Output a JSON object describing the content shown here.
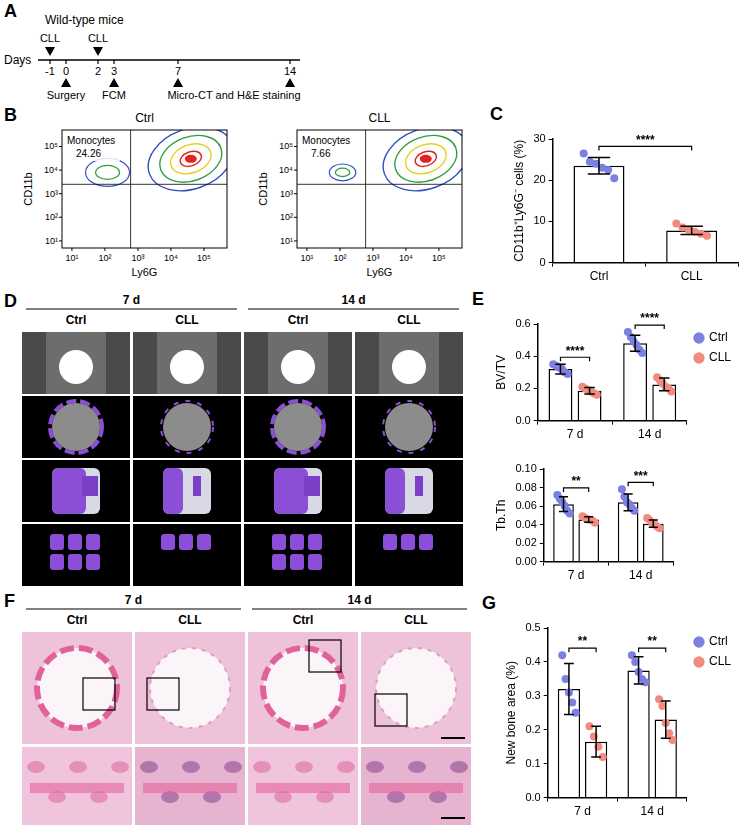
{
  "panels": {
    "A": {
      "letter": "A",
      "title": "Wild-type mice",
      "axis_label": "Days",
      "days": [
        -1,
        0,
        2,
        3,
        7,
        14
      ],
      "events": [
        {
          "days": [
            -1
          ],
          "label": "CLL",
          "side": "above"
        },
        {
          "days": [
            0
          ],
          "label": "Surgery",
          "side": "below"
        },
        {
          "days": [
            2
          ],
          "label": "CLL",
          "side": "above"
        },
        {
          "days": [
            3
          ],
          "label": "FCM",
          "side": "below"
        },
        {
          "days": [
            7,
            14
          ],
          "label": "Micro-CT and H&E staining",
          "side": "below"
        }
      ]
    },
    "B": {
      "letter": "B",
      "x_label": "Ly6G",
      "y_label": "CD11b",
      "xlim": [
        5,
        500000
      ],
      "ylim": [
        5,
        500000
      ],
      "xticks": [
        {
          "value": 10,
          "label": "10¹"
        },
        {
          "value": 100,
          "label": "10²"
        },
        {
          "value": 1000,
          "label": "10³"
        },
        {
          "value": 10000,
          "label": "10⁴"
        },
        {
          "value": 100000,
          "label": "10⁵"
        }
      ],
      "yticks": [
        {
          "value": 10,
          "label": "10¹"
        },
        {
          "value": 100,
          "label": "10²"
        },
        {
          "value": 1000,
          "label": "10³"
        },
        {
          "value": 10000,
          "label": "10⁴"
        },
        {
          "value": 100000,
          "label": "10⁵"
        }
      ],
      "plots": [
        {
          "title": "Ctrl",
          "gate": "Monocytes",
          "value": 24.26
        },
        {
          "title": "CLL",
          "gate": "Monocytes",
          "value": 7.66
        }
      ]
    },
    "D": {
      "letter": "D",
      "groups": [
        "7 d",
        "14 d"
      ],
      "columns": [
        "Ctrl",
        "CLL"
      ]
    },
    "F": {
      "letter": "F",
      "groups": [
        "7 d",
        "14 d"
      ],
      "columns": [
        "Ctrl",
        "CLL"
      ]
    }
  },
  "chart_data": [
    {
      "panel": "C",
      "type": "bar",
      "categories": [
        "Ctrl",
        "CLL"
      ],
      "values": [
        23.5,
        7.8
      ],
      "errors": [
        2.0,
        1.0
      ],
      "points": [
        [
          26.5,
          24.5,
          24,
          23,
          22.5,
          20.5
        ],
        [
          9.5,
          8.5,
          8,
          7.5,
          7,
          6.5
        ]
      ],
      "colors": [
        "#7c80e0",
        "#f08b7e"
      ],
      "y_label": "CD11b⁺Ly6G⁻ cells (%)",
      "ylim": [
        0,
        30
      ],
      "yticks": [
        0,
        10,
        20,
        30
      ],
      "grid": false,
      "comparisons": [
        {
          "between": [
            "Ctrl",
            "CLL"
          ],
          "label": "****"
        }
      ]
    },
    {
      "panel": "E",
      "type": "bar",
      "categories": [
        "7 d",
        "14 d"
      ],
      "series": [
        {
          "name": "Ctrl",
          "color": "#7c80e0",
          "values": [
            0.32,
            0.48
          ],
          "errors": [
            0.03,
            0.05
          ],
          "points": [
            [
              0.35,
              0.34,
              0.33,
              0.32,
              0.3,
              0.29
            ],
            [
              0.55,
              0.52,
              0.49,
              0.47,
              0.44,
              0.42
            ]
          ]
        },
        {
          "name": "CLL",
          "color": "#f08b7e",
          "values": [
            0.185,
            0.225
          ],
          "errors": [
            0.02,
            0.04
          ],
          "points": [
            [
              0.21,
              0.2,
              0.19,
              0.18,
              0.17,
              0.16
            ],
            [
              0.27,
              0.25,
              0.23,
              0.21,
              0.2,
              0.18
            ]
          ]
        }
      ],
      "y_label": "BV/TV",
      "ylim": [
        0,
        0.6
      ],
      "yticks": [
        {
          "value": 0,
          "label": "0.0"
        },
        0.2,
        0.4,
        0.6
      ],
      "grid": false,
      "legend": "right",
      "significance": [
        "****",
        "****"
      ]
    },
    {
      "type": "bar",
      "categories": [
        "7 d",
        "14 d"
      ],
      "series": [
        {
          "name": "Ctrl",
          "color": "#7c80e0",
          "values": [
            0.062,
            0.064
          ],
          "errors": [
            0.008,
            0.009
          ],
          "points": [
            [
              0.072,
              0.068,
              0.064,
              0.06,
              0.055,
              0.052
            ],
            [
              0.078,
              0.07,
              0.064,
              0.062,
              0.058,
              0.055
            ]
          ]
        },
        {
          "name": "CLL",
          "color": "#f08b7e",
          "values": [
            0.0455,
            0.041
          ],
          "errors": [
            0.003,
            0.004
          ],
          "points": [
            [
              0.049,
              0.047,
              0.046,
              0.045,
              0.044,
              0.042
            ],
            [
              0.047,
              0.045,
              0.042,
              0.04,
              0.038,
              0.036
            ]
          ]
        }
      ],
      "y_label": "Tb.Th",
      "ylim": [
        0,
        0.1
      ],
      "yticks": [
        {
          "value": 0,
          "label": "0.00"
        },
        {
          "value": 0.02,
          "label": "0.02"
        },
        {
          "value": 0.04,
          "label": "0.04"
        },
        {
          "value": 0.06,
          "label": "0.06"
        },
        {
          "value": 0.08,
          "label": "0.08"
        },
        {
          "value": 0.1,
          "label": "0.10"
        }
      ],
      "grid": false,
      "significance": [
        "**",
        "***"
      ]
    },
    {
      "panel": "G",
      "type": "bar",
      "categories": [
        "7 d",
        "14 d"
      ],
      "series": [
        {
          "name": "Ctrl",
          "color": "#7c80e0",
          "values": [
            0.32,
            0.375
          ],
          "errors": [
            0.075,
            0.04
          ],
          "points": [
            [
              0.42,
              0.35,
              0.31,
              0.28,
              0.25
            ],
            [
              0.42,
              0.4,
              0.37,
              0.35,
              0.34
            ]
          ]
        },
        {
          "name": "CLL",
          "color": "#f08b7e",
          "values": [
            0.165,
            0.23
          ],
          "errors": [
            0.045,
            0.055
          ],
          "points": [
            [
              0.21,
              0.18,
              0.15,
              0.12
            ],
            [
              0.29,
              0.27,
              0.22,
              0.19,
              0.17
            ]
          ]
        }
      ],
      "y_label": "New bone area (%)",
      "ylim": [
        0,
        0.5
      ],
      "yticks": [
        {
          "value": 0,
          "label": "0.0"
        },
        0.1,
        0.2,
        0.3,
        0.4,
        0.5
      ],
      "grid": false,
      "legend": "right",
      "significance": [
        "**",
        "**"
      ]
    }
  ]
}
